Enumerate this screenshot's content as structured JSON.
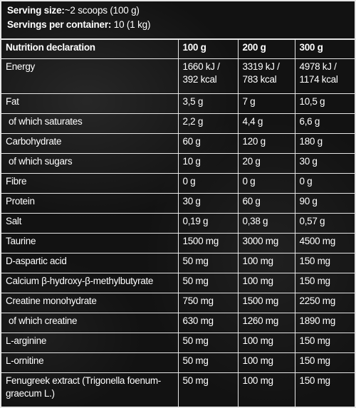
{
  "serving": {
    "size_label": "Serving size:",
    "size_value": "~2 scoops (100 g)",
    "per_container_label": "Servings per container:",
    "per_container_value": "10 (1 kg)"
  },
  "headers": [
    "Nutrition declaration",
    "100 g",
    "200 g",
    "300 g"
  ],
  "rows": [
    {
      "name": "Energy",
      "v100": "1660 kJ / 392 kcal",
      "v200": "3319 kJ / 783 kcal",
      "v300": "4978 kJ / 1174 kcal"
    },
    {
      "name": "Fat",
      "v100": "3,5 g",
      "v200": "7 g",
      "v300": "10,5 g"
    },
    {
      "name": "of which saturates",
      "v100": "2,2 g",
      "v200": "4,4 g",
      "v300": "6,6 g"
    },
    {
      "name": "Carbohydrate",
      "v100": "60 g",
      "v200": "120 g",
      "v300": "180 g"
    },
    {
      "name": "of which sugars",
      "v100": "10 g",
      "v200": "20 g",
      "v300": "30 g"
    },
    {
      "name": "Fibre",
      "v100": "0 g",
      "v200": "0 g",
      "v300": "0 g"
    },
    {
      "name": "Protein",
      "v100": "30 g",
      "v200": "60 g",
      "v300": "90 g"
    },
    {
      "name": "Salt",
      "v100": "0,19 g",
      "v200": "0,38 g",
      "v300": "0,57 g"
    },
    {
      "name": "Taurine",
      "v100": "1500 mg",
      "v200": "3000 mg",
      "v300": "4500 mg"
    },
    {
      "name": "D-aspartic acid",
      "v100": "50 mg",
      "v200": "100 mg",
      "v300": "150 mg"
    },
    {
      "name": "Calcium β-hydroxy-β-methylbutyrate",
      "v100": "50 mg",
      "v200": "100 mg",
      "v300": "150 mg"
    },
    {
      "name": "Creatine monohydrate",
      "v100": "750 mg",
      "v200": "1500 mg",
      "v300": "2250 mg"
    },
    {
      "name": "of which creatine",
      "v100": "630 mg",
      "v200": "1260 mg",
      "v300": "1890 mg"
    },
    {
      "name": "L-arginine",
      "v100": "50 mg",
      "v200": "100 mg",
      "v300": "150 mg"
    },
    {
      "name": "L-ornitine",
      "v100": "50 mg",
      "v200": "100 mg",
      "v300": "150 mg"
    },
    {
      "name": "Fenugreek extract (Trigonella foenum-graecum L.)",
      "v100": "50 mg",
      "v200": "100 mg",
      "v300": "150 mg"
    }
  ]
}
